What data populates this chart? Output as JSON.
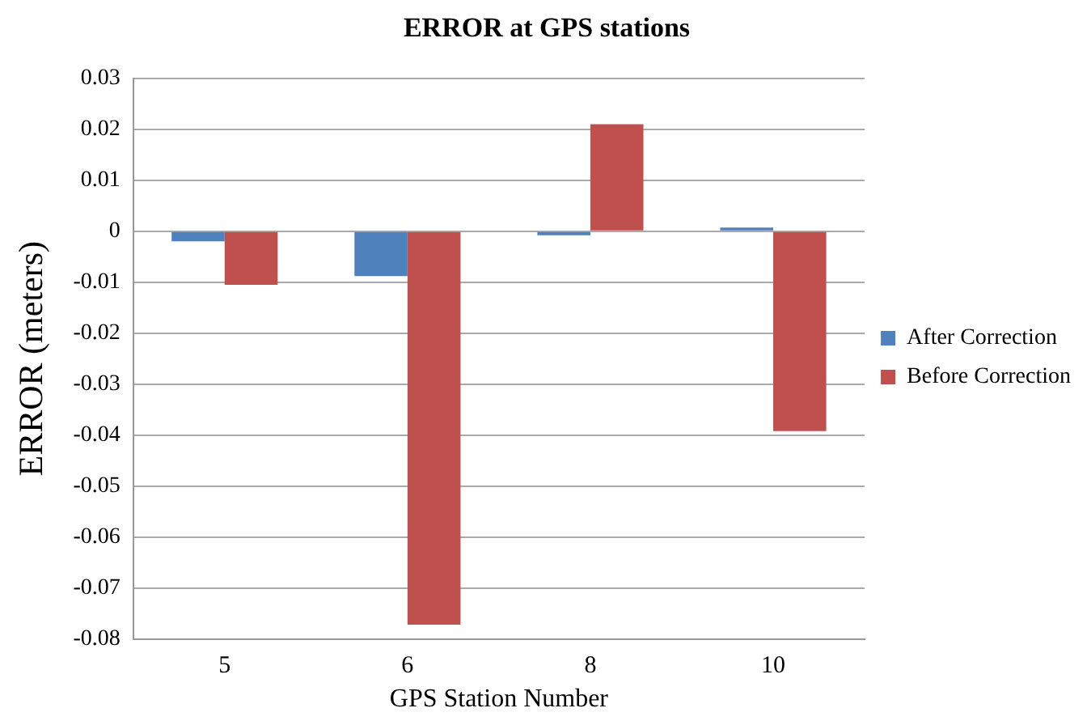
{
  "chart_data": {
    "type": "bar",
    "title": "ERROR at GPS stations",
    "xlabel": "GPS Station Number",
    "ylabel": "ERROR (meters)",
    "categories": [
      "5",
      "6",
      "8",
      "10"
    ],
    "series": [
      {
        "name": "After Correction",
        "color": "#4f81bd",
        "values": [
          -0.002,
          -0.0088,
          -0.0008,
          0.0007
        ]
      },
      {
        "name": "Before Correction",
        "color": "#c0504d",
        "values": [
          -0.0105,
          -0.0772,
          0.021,
          -0.0392
        ]
      }
    ],
    "ylim": [
      -0.08,
      0.03
    ],
    "yticks": [
      -0.08,
      -0.07,
      -0.06,
      -0.05,
      -0.04,
      -0.03,
      -0.02,
      -0.01,
      0,
      0.01,
      0.02,
      0.03
    ],
    "grid": "y",
    "legend": "right"
  }
}
